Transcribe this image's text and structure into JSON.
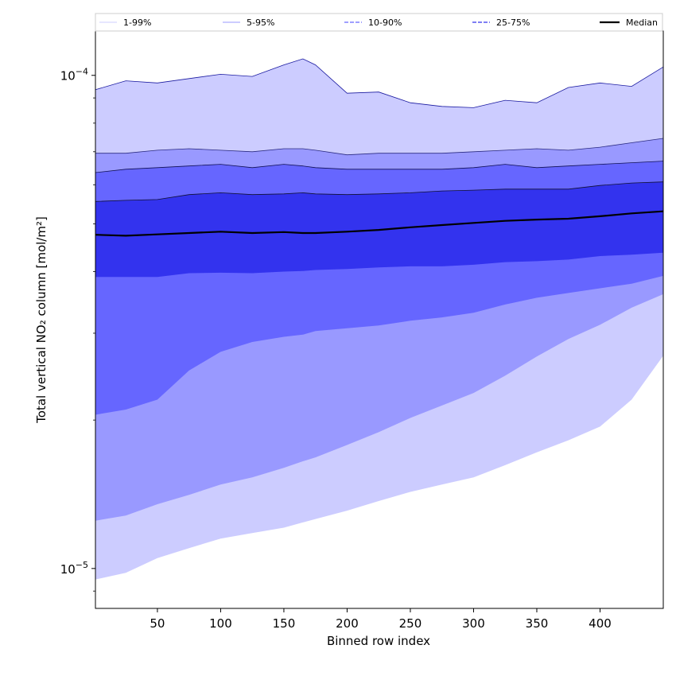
{
  "chart_data": {
    "type": "area",
    "xlabel": "Binned row index",
    "ylabel": "Total vertical NO₂ column [mol/m²]",
    "yscale": "log",
    "xlim": [
      1,
      450
    ],
    "ylim": [
      8.3e-06,
      0.000123
    ],
    "x_ticks": [
      50,
      100,
      150,
      200,
      250,
      300,
      350,
      400
    ],
    "y_ticks": [
      {
        "value": 1e-05,
        "base": "10",
        "exp": "−5"
      },
      {
        "value": 0.0001,
        "base": "10",
        "exp": "−4"
      }
    ],
    "y_minor_ticks": [
      9e-06,
      2e-05,
      3e-05,
      4e-05,
      5e-05,
      6e-05,
      7e-05,
      8e-05,
      9e-05
    ],
    "legend": {
      "placement": "top, horizontal",
      "entries": [
        {
          "label": "1-99%",
          "color": "#ccccff",
          "style": "solid-thin"
        },
        {
          "label": "5-95%",
          "color": "#9999ff",
          "style": "solid-thin"
        },
        {
          "label": "10-90%",
          "color": "#6666ff",
          "style": "dashed"
        },
        {
          "label": "25-75%",
          "color": "#3333ee",
          "style": "dashed"
        },
        {
          "label": "Median",
          "color": "#000000",
          "style": "solid-thick"
        }
      ]
    },
    "x": [
      1,
      25,
      50,
      75,
      100,
      125,
      150,
      165,
      175,
      200,
      225,
      250,
      275,
      300,
      325,
      350,
      375,
      400,
      425,
      450
    ],
    "series": [
      {
        "name": "1-99%",
        "color": "#ccccff",
        "upper": [
          9.35e-05,
          9.75e-05,
          9.65e-05,
          9.85e-05,
          0.0001005,
          9.95e-05,
          0.000105,
          0.000108,
          0.000105,
          9.2e-05,
          9.25e-05,
          8.8e-05,
          8.65e-05,
          8.6e-05,
          8.9e-05,
          8.8e-05,
          9.45e-05,
          9.65e-05,
          9.5e-05,
          0.000104
        ],
        "lower": [
          9.5e-06,
          9.8e-06,
          1.05e-05,
          1.1e-05,
          1.15e-05,
          1.18e-05,
          1.21e-05,
          1.24e-05,
          1.26e-05,
          1.31e-05,
          1.37e-05,
          1.43e-05,
          1.48e-05,
          1.53e-05,
          1.62e-05,
          1.72e-05,
          1.82e-05,
          1.94e-05,
          2.2e-05,
          2.7e-05
        ]
      },
      {
        "name": "5-95%",
        "color": "#9999ff",
        "upper": [
          6.95e-05,
          6.95e-05,
          7.05e-05,
          7.1e-05,
          7.05e-05,
          7e-05,
          7.1e-05,
          7.1e-05,
          7.05e-05,
          6.9e-05,
          6.95e-05,
          6.95e-05,
          6.95e-05,
          7e-05,
          7.05e-05,
          7.1e-05,
          7.05e-05,
          7.15e-05,
          7.3e-05,
          7.45e-05
        ],
        "lower": [
          1.25e-05,
          1.28e-05,
          1.35e-05,
          1.41e-05,
          1.48e-05,
          1.53e-05,
          1.6e-05,
          1.65e-05,
          1.68e-05,
          1.78e-05,
          1.89e-05,
          2.02e-05,
          2.14e-05,
          2.27e-05,
          2.46e-05,
          2.69e-05,
          2.92e-05,
          3.12e-05,
          3.38e-05,
          3.6e-05
        ]
      },
      {
        "name": "10-90%",
        "color": "#6666ff",
        "upper": [
          6.35e-05,
          6.45e-05,
          6.5e-05,
          6.55e-05,
          6.6e-05,
          6.5e-05,
          6.6e-05,
          6.55e-05,
          6.5e-05,
          6.45e-05,
          6.45e-05,
          6.45e-05,
          6.45e-05,
          6.5e-05,
          6.6e-05,
          6.5e-05,
          6.55e-05,
          6.6e-05,
          6.65e-05,
          6.7e-05
        ],
        "lower": [
          2.05e-05,
          2.1e-05,
          2.2e-05,
          2.52e-05,
          2.75e-05,
          2.88e-05,
          2.95e-05,
          2.98e-05,
          3.03e-05,
          3.07e-05,
          3.11e-05,
          3.18e-05,
          3.23e-05,
          3.3e-05,
          3.43e-05,
          3.54e-05,
          3.62e-05,
          3.7e-05,
          3.78e-05,
          3.92e-05
        ]
      },
      {
        "name": "25-75%",
        "color": "#3333ee",
        "upper": [
          5.55e-05,
          5.58e-05,
          5.6e-05,
          5.73e-05,
          5.78e-05,
          5.73e-05,
          5.75e-05,
          5.78e-05,
          5.75e-05,
          5.73e-05,
          5.75e-05,
          5.78e-05,
          5.83e-05,
          5.85e-05,
          5.88e-05,
          5.88e-05,
          5.88e-05,
          5.98e-05,
          6.05e-05,
          6.08e-05
        ],
        "lower": [
          3.9e-05,
          3.9e-05,
          3.9e-05,
          3.97e-05,
          3.98e-05,
          3.97e-05,
          4e-05,
          4.01e-05,
          4.03e-05,
          4.05e-05,
          4.08e-05,
          4.1e-05,
          4.1e-05,
          4.13e-05,
          4.18e-05,
          4.2e-05,
          4.23e-05,
          4.3e-05,
          4.33e-05,
          4.37e-05
        ]
      },
      {
        "name": "Median",
        "color": "#000000",
        "values": [
          4.75e-05,
          4.73e-05,
          4.76e-05,
          4.79e-05,
          4.82e-05,
          4.79e-05,
          4.81e-05,
          4.79e-05,
          4.79e-05,
          4.82e-05,
          4.86e-05,
          4.92e-05,
          4.97e-05,
          5.02e-05,
          5.07e-05,
          5.1e-05,
          5.12e-05,
          5.18e-05,
          5.25e-05,
          5.3e-05
        ]
      }
    ]
  }
}
